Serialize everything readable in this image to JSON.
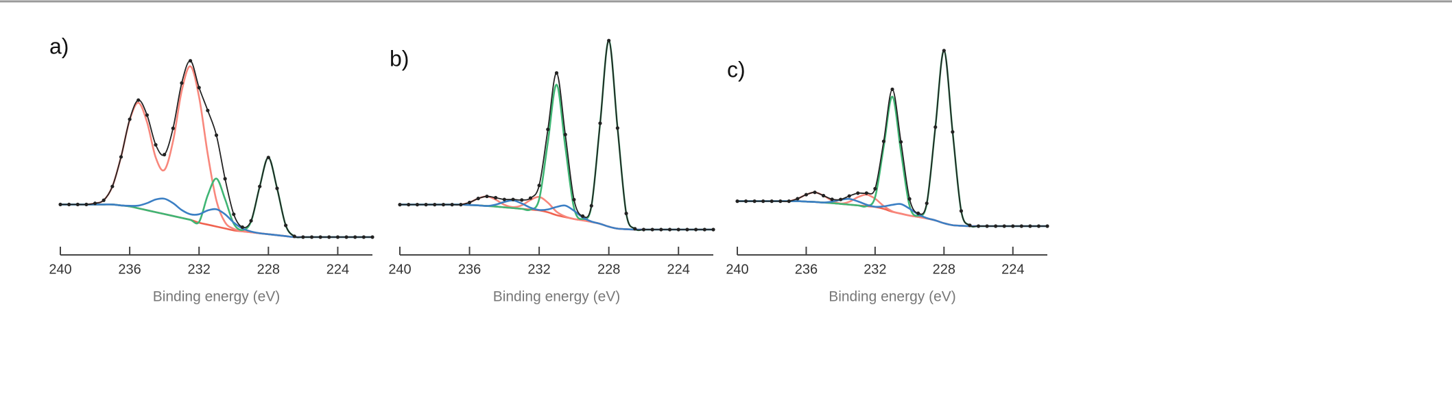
{
  "chart_data": [
    {
      "type": "line",
      "label": "a)",
      "x_label": "Binding energy (eV)",
      "xlim": [
        240,
        222
      ],
      "xticks": [
        240,
        236,
        232,
        228,
        224
      ],
      "x": [
        240,
        239.5,
        239,
        238.5,
        238,
        237.5,
        237,
        236.5,
        236,
        235.5,
        235,
        234.5,
        234,
        233.5,
        233,
        232.5,
        232,
        231.5,
        231,
        230.5,
        230,
        229.5,
        229,
        228.5,
        228,
        227.5,
        227,
        226.5,
        226,
        225.5,
        225,
        224.5,
        224,
        223.5,
        223,
        222.5,
        222
      ],
      "series": [
        {
          "color": "#f0624f",
          "values": [
            17,
            17,
            17,
            17,
            17,
            17,
            17,
            16.5,
            16,
            15,
            14,
            13,
            12,
            11,
            10,
            9,
            7.5,
            6.5,
            5.5,
            4.5,
            3.5,
            3,
            2.5,
            2,
            1.5,
            1,
            0.5,
            0,
            0,
            0,
            0,
            0,
            0,
            0,
            0,
            0,
            0
          ]
        },
        {
          "color": "#f8877c",
          "values": [
            17,
            17,
            17,
            17,
            17.6,
            19.2,
            26.4,
            41.8,
            61.1,
            70,
            59.9,
            41.5,
            35,
            50,
            76.2,
            89,
            73.1,
            43.3,
            19.1,
            7.7,
            4.3,
            3,
            2.5,
            2,
            1.5,
            1,
            0.5,
            0,
            0,
            0,
            0,
            0,
            0,
            0,
            0,
            0,
            0
          ]
        },
        {
          "color": "#3fb574",
          "values": [
            17,
            17,
            17,
            17,
            17,
            17,
            17,
            16.5,
            16,
            15,
            14,
            13,
            12,
            11,
            10,
            9,
            7.9,
            21.8,
            30.5,
            19.8,
            7,
            3.7,
            8.1,
            26.4,
            41.5,
            25.4,
            6.1,
            0.4,
            0,
            0,
            0,
            0,
            0,
            0,
            0,
            0,
            0
          ]
        },
        {
          "color": "#3b7fc4",
          "values": [
            17,
            17,
            17,
            17,
            17,
            17,
            17,
            16.5,
            16.3,
            16.4,
            17.7,
            19.6,
            20,
            17.7,
            14.1,
            11.9,
            11.9,
            13.9,
            14.5,
            11.9,
            7.6,
            4.5,
            2.9,
            2,
            1.5,
            1,
            0.5,
            0,
            0,
            0,
            0,
            0,
            0,
            0,
            0,
            0,
            0
          ]
        },
        {
          "color": "#222222",
          "marker": "dots",
          "values": [
            17,
            17,
            17,
            17,
            17.6,
            19.2,
            26.4,
            41.8,
            61.4,
            71.4,
            63.6,
            48.1,
            43,
            56.7,
            80.3,
            91.9,
            77.9,
            66,
            53.1,
            30.4,
            11.9,
            5.2,
            8.5,
            26.4,
            41.5,
            25.4,
            6.1,
            0.4,
            0,
            0,
            0,
            0,
            0,
            0,
            0,
            0,
            0
          ]
        }
      ]
    },
    {
      "type": "line",
      "label": "b)",
      "x_label": "Binding energy (eV)",
      "xlim": [
        240,
        222
      ],
      "xticks": [
        240,
        236,
        232,
        228,
        224
      ],
      "x": [
        240,
        239.5,
        239,
        238.5,
        238,
        237.5,
        237,
        236.5,
        236,
        235.5,
        235,
        234.5,
        234,
        233.5,
        233,
        232.5,
        232,
        231.5,
        231,
        230.5,
        230,
        229.5,
        229,
        228.5,
        228,
        227.5,
        227,
        226.5,
        226,
        225.5,
        225,
        224.5,
        224,
        223.5,
        223,
        222.5,
        222
      ],
      "series": [
        {
          "color": "#f0624f",
          "values": [
            13,
            13,
            13,
            13,
            13,
            13,
            13,
            13,
            12.8,
            12.6,
            12.3,
            12,
            11.6,
            11.2,
            10.8,
            10.4,
            10,
            9,
            7.5,
            6.5,
            5.5,
            4.8,
            4,
            3,
            1.5,
            0.5,
            0.2,
            0,
            0,
            0,
            0,
            0,
            0,
            0,
            0,
            0,
            0
          ]
        },
        {
          "color": "#f8877c",
          "values": [
            13,
            13,
            13,
            13,
            13,
            13,
            13,
            13,
            14.1,
            16.2,
            17.3,
            15.6,
            12.9,
            11.7,
            12.6,
            15.4,
            17,
            14,
            9.3,
            6.8,
            5.5,
            4.8,
            4,
            3,
            1.5,
            0.5,
            0.2,
            0,
            0,
            0,
            0,
            0,
            0,
            0,
            0,
            0,
            0
          ]
        },
        {
          "color": "#3fb574",
          "values": [
            13,
            13,
            13,
            13,
            13,
            13,
            13,
            13,
            12.8,
            12.6,
            12.3,
            12,
            11.6,
            11.2,
            10.8,
            10.4,
            15.8,
            45.7,
            75.5,
            43.2,
            11.3,
            5.5,
            12.2,
            55.4,
            98.5,
            52.9,
            8.4,
            0.4,
            0,
            0,
            0,
            0,
            0,
            0,
            0,
            0,
            0
          ]
        },
        {
          "color": "#3b7fc4",
          "values": [
            13,
            13,
            13,
            13,
            13,
            13,
            13,
            13,
            12.8,
            12.6,
            12.3,
            13,
            14.4,
            15.2,
            13.6,
            11.4,
            10.2,
            10.5,
            11.8,
            12.5,
            9.8,
            6.3,
            4.2,
            3,
            1.5,
            0.5,
            0.2,
            0,
            0,
            0,
            0,
            0,
            0,
            0,
            0,
            0,
            0
          ]
        },
        {
          "color": "#222222",
          "marker": "dots",
          "values": [
            13,
            13,
            13,
            13,
            13,
            13,
            13,
            13,
            14.1,
            16.2,
            17.3,
            16.6,
            15.7,
            15.7,
            15.4,
            16.4,
            23,
            52.2,
            81.6,
            49.5,
            15.6,
            7,
            12.4,
            55.4,
            98.5,
            52.9,
            8.4,
            0.4,
            0,
            0,
            0,
            0,
            0,
            0,
            0,
            0,
            0
          ]
        }
      ]
    },
    {
      "type": "line",
      "label": "c)",
      "x_label": "Binding energy (eV)",
      "xlim": [
        240,
        222
      ],
      "xticks": [
        240,
        236,
        232,
        228,
        224
      ],
      "x": [
        240,
        239.5,
        239,
        238.5,
        238,
        237.5,
        237,
        236.5,
        236,
        235.5,
        235,
        234.5,
        234,
        233.5,
        233,
        232.5,
        232,
        231.5,
        231,
        230.5,
        230,
        229.5,
        229,
        228.5,
        228,
        227.5,
        227,
        226.5,
        226,
        225.5,
        225,
        224.5,
        224,
        223.5,
        223,
        222.5,
        222
      ],
      "series": [
        {
          "color": "#f0624f",
          "values": [
            13,
            13,
            13,
            13,
            13,
            13,
            13,
            13,
            12.8,
            12.6,
            12.3,
            12,
            11.6,
            11.2,
            10.8,
            10.4,
            10,
            9,
            7.5,
            6.5,
            5.5,
            4.8,
            4,
            3,
            1.5,
            0.5,
            0.2,
            0,
            0,
            0,
            0,
            0,
            0,
            0,
            0,
            0,
            0
          ]
        },
        {
          "color": "#f8877c",
          "values": [
            13,
            13,
            13,
            13,
            13,
            13,
            13,
            14.3,
            16.4,
            17.6,
            15.9,
            13.3,
            11.8,
            12.7,
            15.1,
            16.4,
            14.3,
            10.5,
            7.7,
            6.5,
            5.5,
            4.8,
            4,
            3,
            1.5,
            0.5,
            0.2,
            0,
            0,
            0,
            0,
            0,
            0,
            0,
            0,
            0,
            0
          ]
        },
        {
          "color": "#3fb574",
          "values": [
            13,
            13,
            13,
            13,
            13,
            13,
            13,
            13,
            12.8,
            12.6,
            12.3,
            12,
            11.6,
            11.2,
            10.8,
            10.4,
            15.1,
            41.4,
            67.5,
            38.9,
            10.6,
            5.4,
            11.7,
            51.6,
            91.5,
            49.1,
            7.9,
            0.4,
            0,
            0,
            0,
            0,
            0,
            0,
            0,
            0,
            0
          ]
        },
        {
          "color": "#3b7fc4",
          "values": [
            13,
            13,
            13,
            13,
            13,
            13,
            13,
            13,
            12.8,
            12.6,
            12.3,
            12.8,
            13.7,
            14.2,
            12.9,
            11.2,
            10.1,
            10.3,
            11.1,
            11.5,
            9.1,
            6.1,
            4.2,
            3,
            1.5,
            0.5,
            0.2,
            0,
            0,
            0,
            0,
            0,
            0,
            0,
            0,
            0,
            0
          ]
        },
        {
          "color": "#222222",
          "marker": "dots",
          "values": [
            13,
            13,
            13,
            13,
            13,
            13,
            13,
            14.3,
            16.4,
            17.6,
            15.9,
            14,
            13.9,
            15.7,
            17.2,
            17.2,
            19.5,
            44.2,
            71.3,
            43.9,
            14.2,
            6.7,
            11.9,
            51.6,
            91.5,
            49.1,
            7.9,
            0.4,
            0,
            0,
            0,
            0,
            0,
            0,
            0,
            0,
            0
          ]
        }
      ]
    }
  ]
}
